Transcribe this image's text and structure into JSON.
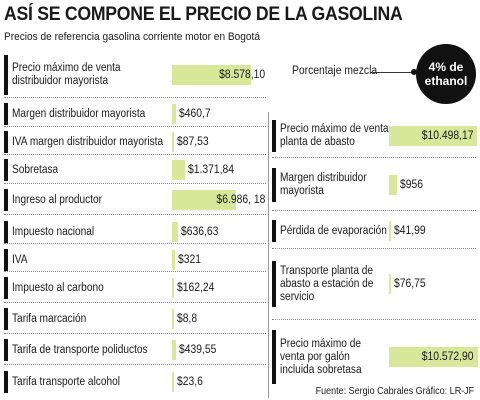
{
  "header": {
    "title": "ASÍ SE COMPONE EL PRECIO DE LA GASOLINA",
    "subtitle": "Precios de referencia gasolina corriente motor en Bogotá"
  },
  "legend": {
    "label": "Porcentaje mezcla",
    "badge_line1": "4% de",
    "badge_line2": "ethanol"
  },
  "footer": {
    "source": "Fuente: Sergio Cabrales  Gráfico: LR-JF"
  },
  "colors": {
    "bar": "#d8e79a",
    "text": "#1a1a1a",
    "badge": "#111111"
  },
  "chart_data": {
    "type": "bar",
    "title": "ASÍ SE COMPONE EL PRECIO DE LA GASOLINA",
    "unit": "",
    "left_items": [
      {
        "label": "Precio máximo de venta distribuidor mayorista",
        "value": 8578.1,
        "display": "$8.578,10"
      },
      {
        "label": "Margen distribuidor mayorista",
        "value": 460.7,
        "display": "$460,7"
      },
      {
        "label": "IVA margen distribuidor mayorista",
        "value": 87.53,
        "display": "$87,53"
      },
      {
        "label": "Sobretasa",
        "value": 1371.84,
        "display": "$1.371,84"
      },
      {
        "label": "Ingreso al productor",
        "value": 6986.18,
        "display": "$6.986, 18"
      },
      {
        "label": "Impuesto nacional",
        "value": 636.63,
        "display": "$636,63"
      },
      {
        "label": "IVA",
        "value": 321,
        "display": "$321"
      },
      {
        "label": "Impuesto al carbono",
        "value": 162.24,
        "display": "$162,24"
      },
      {
        "label": "Tarifa marcación",
        "value": 8.8,
        "display": "$8,8"
      },
      {
        "label": "Tarifa de transporte poliductos",
        "value": 439.55,
        "display": "$439,55"
      },
      {
        "label": "Tarifa transporte alcohol",
        "value": 23.6,
        "display": "$23,6"
      }
    ],
    "right_items": [
      {
        "label": "Precio máximo de venta planta de abasto",
        "value": 10498.17,
        "display": "$10.498,17"
      },
      {
        "label": "Margen distribuidor mayorista",
        "value": 956,
        "display": "$956"
      },
      {
        "label": "Pérdida de evaporación",
        "value": 41.99,
        "display": "$41,99"
      },
      {
        "label": "Transporte planta de abasto a estación de servicio",
        "value": 76.75,
        "display": "$76,75"
      },
      {
        "label": "Precio máximo de venta por galón incluida sobretasa",
        "value": 10572.9,
        "display": "$10.572,90"
      }
    ]
  }
}
